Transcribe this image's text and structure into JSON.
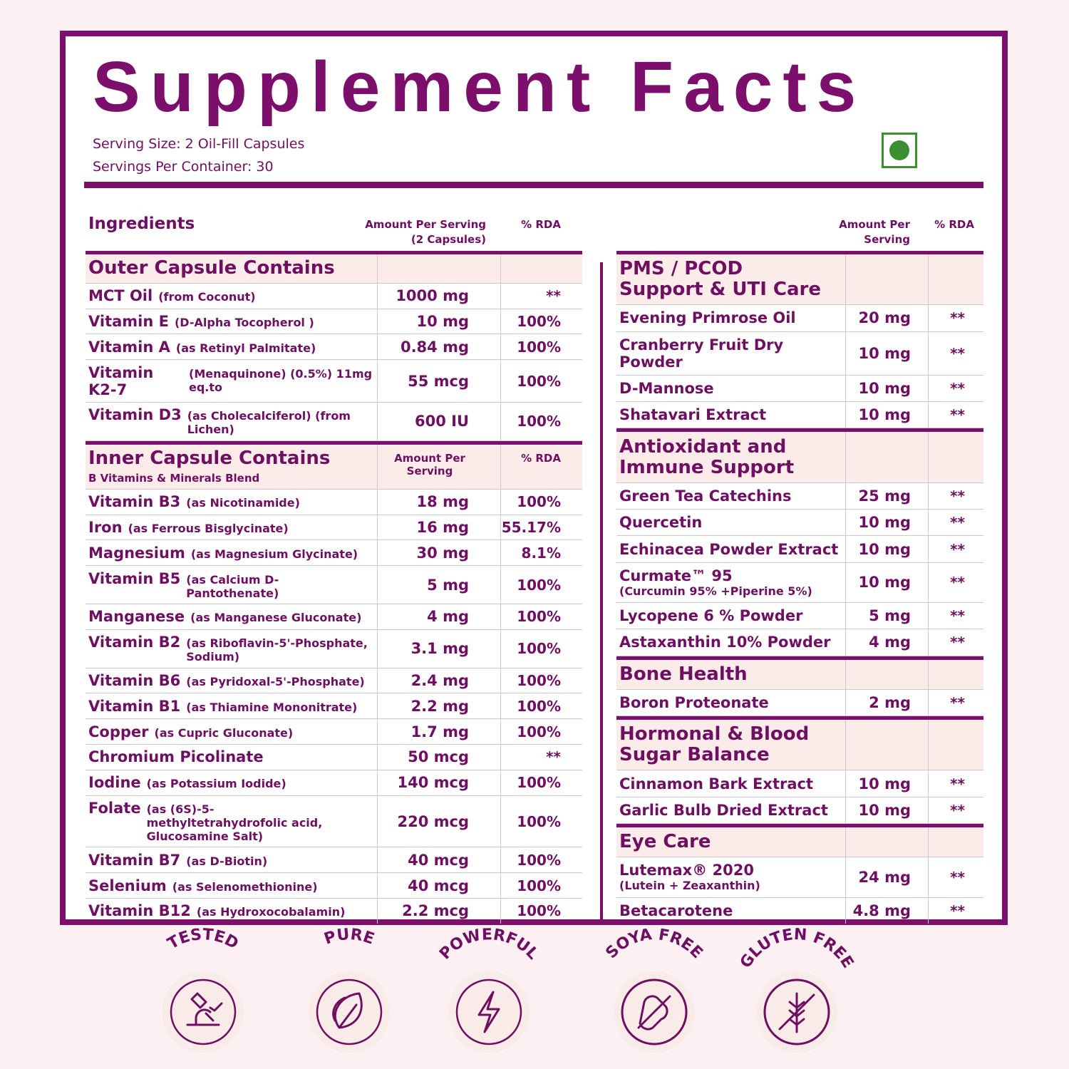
{
  "header": {
    "title": "Supplement Facts",
    "serving_size": "Serving Size: 2 Oil-Fill Capsules",
    "servings_per_container": "Servings Per Container: 30"
  },
  "columns": {
    "ingredients": "Ingredients",
    "left_amount": "Amount Per Serving",
    "left_amount_note": "(2 Capsules)",
    "left_rda": "% RDA",
    "right_amount": "Amount Per Serving",
    "right_rda": "% RDA"
  },
  "left": {
    "sections": [
      {
        "title": "Outer Capsule Contains",
        "rows": [
          {
            "name": "MCT Oil",
            "detail": "(from Coconut)",
            "amount": "1000 mg",
            "rda": "**"
          },
          {
            "name": "Vitamin E",
            "detail": "(D-Alpha Tocopherol )",
            "amount": "10 mg",
            "rda": "100%"
          },
          {
            "name": "Vitamin A",
            "detail": "(as Retinyl Palmitate)",
            "amount": "0.84 mg",
            "rda": "100%"
          },
          {
            "name": "Vitamin K2-7",
            "detail": "(Menaquinone) (0.5%) 11mg eq.to",
            "amount": "55 mcg",
            "rda": "100%"
          },
          {
            "name": "Vitamin D3",
            "detail": "(as Cholecalciferol) (from Lichen)",
            "amount": "600 IU",
            "rda": "100%"
          }
        ]
      },
      {
        "title": "Inner Capsule Contains",
        "subtitle": "B Vitamins & Minerals Blend",
        "amount_label": "Amount Per Serving",
        "rda_label": "% RDA",
        "rows": [
          {
            "name": "Vitamin B3",
            "detail": "(as Nicotinamide)",
            "amount": "18 mg",
            "rda": "100%"
          },
          {
            "name": "Iron",
            "detail": "(as Ferrous Bisglycinate)",
            "amount": "16 mg",
            "rda": "55.17%"
          },
          {
            "name": "Magnesium",
            "detail": "(as Magnesium Glycinate)",
            "amount": "30 mg",
            "rda": "8.1%"
          },
          {
            "name": "Vitamin B5",
            "detail": "(as Calcium D-Pantothenate)",
            "amount": "5 mg",
            "rda": "100%"
          },
          {
            "name": "Manganese",
            "detail": "(as Manganese Gluconate)",
            "amount": "4 mg",
            "rda": "100%"
          },
          {
            "name": "Vitamin B2",
            "detail": "(as Riboflavin-5'-Phosphate, Sodium)",
            "amount": "3.1 mg",
            "rda": "100%"
          },
          {
            "name": "Vitamin B6",
            "detail": "(as Pyridoxal-5'-Phosphate)",
            "amount": "2.4 mg",
            "rda": "100%"
          },
          {
            "name": "Vitamin B1",
            "detail": "(as Thiamine Mononitrate)",
            "amount": "2.2 mg",
            "rda": "100%"
          },
          {
            "name": "Copper",
            "detail": "(as Cupric Gluconate)",
            "amount": "1.7 mg",
            "rda": "100%"
          },
          {
            "name": "Chromium Picolinate",
            "amount": "50 mcg",
            "rda": "**"
          },
          {
            "name": "Iodine",
            "detail": "(as Potassium Iodide)",
            "amount": "140 mcg",
            "rda": "100%"
          },
          {
            "name": "Folate",
            "detail": "(as (6S)-5-methyltetrahydrofolic acid, Glucosamine Salt)",
            "amount": "220 mcg",
            "rda": "100%"
          },
          {
            "name": "Vitamin B7",
            "detail": "(as D-Biotin)",
            "amount": "40 mcg",
            "rda": "100%"
          },
          {
            "name": "Selenium",
            "detail": "(as Selenomethionine)",
            "amount": "40 mcg",
            "rda": "100%"
          },
          {
            "name": "Vitamin B12",
            "detail": "(as Hydroxocobalamin)",
            "amount": "2.2 mcg",
            "rda": "100%"
          }
        ]
      }
    ]
  },
  "right": {
    "sections": [
      {
        "title": "PMS / PCOD Support & UTI Care",
        "rows": [
          {
            "name": "Evening Primrose Oil",
            "amount": "20 mg",
            "rda": "**"
          },
          {
            "name": "Cranberry Fruit Dry Powder",
            "amount": "10 mg",
            "rda": "**"
          },
          {
            "name": "D-Mannose",
            "amount": "10 mg",
            "rda": "**"
          },
          {
            "name": "Shatavari Extract",
            "amount": "10 mg",
            "rda": "**"
          }
        ]
      },
      {
        "title": "Antioxidant and Immune Support",
        "rows": [
          {
            "name": "Green Tea Catechins",
            "amount": "25 mg",
            "rda": "**"
          },
          {
            "name": "Quercetin",
            "amount": "10 mg",
            "rda": "**"
          },
          {
            "name": "Echinacea Powder Extract",
            "amount": "10 mg",
            "rda": "**"
          },
          {
            "name": "Curmate™ 95",
            "detail": "(Curcumin 95% +Piperine 5%)",
            "amount": "10 mg",
            "rda": "**"
          },
          {
            "name": "Lycopene 6 % Powder",
            "amount": "5 mg",
            "rda": "**"
          },
          {
            "name": "Astaxanthin 10% Powder",
            "amount": "4 mg",
            "rda": "**"
          }
        ]
      },
      {
        "title": "Bone Health",
        "rows": [
          {
            "name": "Boron Proteonate",
            "amount": "2 mg",
            "rda": "**"
          }
        ]
      },
      {
        "title": "Hormonal & Blood Sugar Balance",
        "rows": [
          {
            "name": "Cinnamon Bark Extract",
            "amount": "10 mg",
            "rda": "**"
          },
          {
            "name": "Garlic Bulb Dried Extract",
            "amount": "10 mg",
            "rda": "**"
          }
        ]
      },
      {
        "title": "Eye Care",
        "rows": [
          {
            "name": "Lutemax® 2020",
            "detail": "(Lutein + Zeaxanthin)",
            "amount": "24 mg",
            "rda": "**"
          },
          {
            "name": "Betacarotene",
            "amount": "4.8 mg",
            "rda": "**"
          }
        ]
      }
    ]
  },
  "badges": [
    "TESTED",
    "PURE",
    "POWERFUL",
    "SOYA  FREE",
    "GLUTEN FREE"
  ]
}
